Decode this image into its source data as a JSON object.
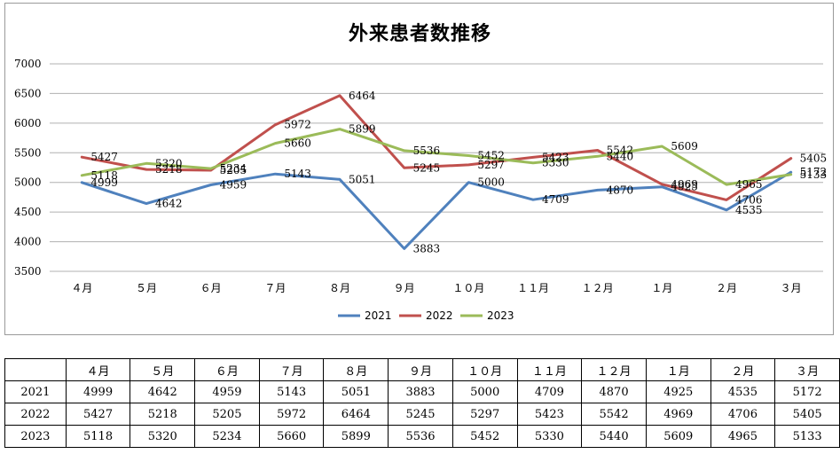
{
  "chart_data": {
    "type": "line",
    "title": "外来患者数推移",
    "categories": [
      "４月",
      "５月",
      "６月",
      "７月",
      "８月",
      "９月",
      "１０月",
      "１１月",
      "１２月",
      "１月",
      "２月",
      "３月"
    ],
    "series": [
      {
        "name": "2021",
        "color": "#4f81bd",
        "values": [
          4999,
          4642,
          4959,
          5143,
          5051,
          3883,
          5000,
          4709,
          4870,
          4925,
          4535,
          5172
        ]
      },
      {
        "name": "2022",
        "color": "#c0504d",
        "values": [
          5427,
          5218,
          5205,
          5972,
          6464,
          5245,
          5297,
          5423,
          5542,
          4969,
          4706,
          5405
        ]
      },
      {
        "name": "2023",
        "color": "#9bbb59",
        "values": [
          5118,
          5320,
          5234,
          5660,
          5899,
          5536,
          5452,
          5330,
          5440,
          5609,
          4965,
          5133
        ]
      }
    ],
    "yticks": [
      3500,
      4000,
      4500,
      5000,
      5500,
      6000,
      6500,
      7000
    ],
    "ylim": [
      3500,
      7000
    ],
    "grid": true,
    "legend": "bottom"
  },
  "table": {
    "rows": [
      {
        "label": "2021",
        "values": [
          4999,
          4642,
          4959,
          5143,
          5051,
          3883,
          5000,
          4709,
          4870,
          4925,
          4535,
          5172
        ]
      },
      {
        "label": "2022",
        "values": [
          5427,
          5218,
          5205,
          5972,
          6464,
          5245,
          5297,
          5423,
          5542,
          4969,
          4706,
          5405
        ]
      },
      {
        "label": "2023",
        "values": [
          5118,
          5320,
          5234,
          5660,
          5899,
          5536,
          5452,
          5330,
          5440,
          5609,
          4965,
          5133
        ]
      }
    ]
  }
}
